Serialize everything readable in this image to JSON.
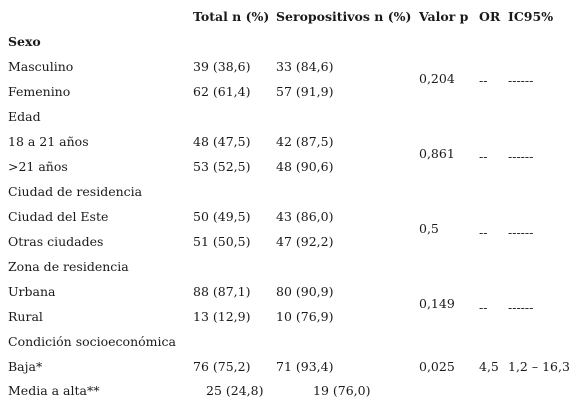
{
  "header": {
    "total": "Total n (%)",
    "seropositivos": "Seropositivos n (%)",
    "valor_p": "Valor p",
    "or": "OR",
    "ic95": "IC95%"
  },
  "sexo": {
    "title": "Sexo",
    "masculino": {
      "label": "Masculino",
      "total": "39 (38,6)",
      "sero": "33 (84,6)"
    },
    "femenino": {
      "label": "Femenino",
      "total": "62 (61,4)",
      "sero": "57 (91,9)"
    },
    "p": "0,204",
    "or": "--",
    "ic": "------"
  },
  "edad": {
    "title": "Edad",
    "r1": {
      "label": "18 a 21 años",
      "total": "48 (47,5)",
      "sero": "42 (87,5)"
    },
    "r2": {
      "label": ">21 años",
      "total": "53 (52,5)",
      "sero": "48 (90,6)"
    },
    "p": "0,861",
    "or": "--",
    "ic": "------"
  },
  "ciudad": {
    "title": "Ciudad de residencia",
    "r1": {
      "label": "Ciudad del Este",
      "total": "50 (49,5)",
      "sero": "43 (86,0)"
    },
    "r2": {
      "label": "Otras ciudades",
      "total": "51 (50,5)",
      "sero": "47 (92,2)"
    },
    "p": "0,5",
    "or": "--",
    "ic": "------"
  },
  "zona": {
    "title": "Zona de residencia",
    "r1": {
      "label": "Urbana",
      "total": "88 (87,1)",
      "sero": "80 (90,9)"
    },
    "r2": {
      "label": "Rural",
      "total": "13 (12,9)",
      "sero": "10 (76,9)"
    },
    "p": "0,149",
    "or": "--",
    "ic": "------"
  },
  "condicion": {
    "title": "Condición socioeconómica",
    "r1": {
      "label": "Baja*",
      "total": "76 (75,2)",
      "sero": "71 (93,4)",
      "p": "0,025",
      "or": "4,5",
      "ic": "1,2 – 16,3"
    },
    "r2": {
      "label": "Media a alta**",
      "total": "25 (24,8)",
      "sero": "19 (76,0)"
    }
  }
}
